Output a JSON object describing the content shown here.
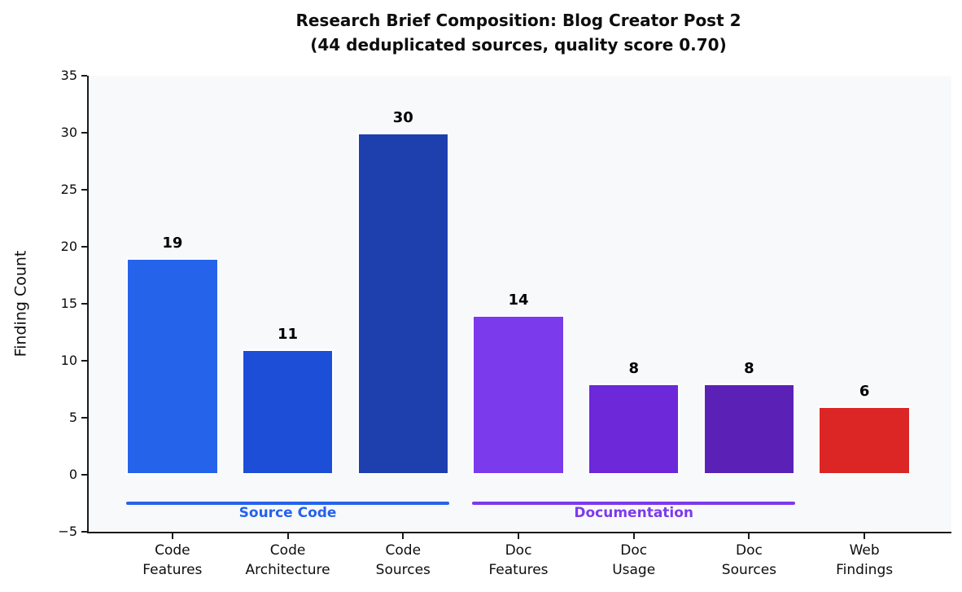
{
  "figure": {
    "title_line1": "Research Brief Composition: Blog Creator Post 2",
    "title_line2": "(44 deduplicated sources, quality score 0.70)"
  },
  "chart_data": {
    "type": "bar",
    "title": "Research Brief Composition: Blog Creator Post 2 (44 deduplicated sources, quality score 0.70)",
    "xlabel": "",
    "ylabel": "Finding Count",
    "ylim": [
      -5,
      35
    ],
    "yticks": [
      35,
      30,
      25,
      20,
      15,
      10,
      5,
      0,
      -5
    ],
    "grid": false,
    "legend_position": "none",
    "plot_background": "#f8f9fb",
    "categories": [
      "Code Features",
      "Code Architecture",
      "Code Sources",
      "Doc Features",
      "Doc Usage",
      "Doc Sources",
      "Web Findings"
    ],
    "category_lines": [
      [
        "Code",
        "Features"
      ],
      [
        "Code",
        "Architecture"
      ],
      [
        "Code",
        "Sources"
      ],
      [
        "Doc",
        "Features"
      ],
      [
        "Doc",
        "Usage"
      ],
      [
        "Doc",
        "Sources"
      ],
      [
        "Web",
        "Findings"
      ]
    ],
    "values": [
      19,
      11,
      30,
      14,
      8,
      8,
      6
    ],
    "value_labels": [
      "19",
      "11",
      "30",
      "14",
      "8",
      "8",
      "6"
    ],
    "bar_colors": [
      "#2563eb",
      "#1d4ed8",
      "#1e40af",
      "#7c3aed",
      "#6d28d9",
      "#5b21b6",
      "#dc2626"
    ],
    "group_annotations": [
      {
        "label": "Source Code",
        "color": "#2563eb",
        "bar_start": 0,
        "bar_end": 2,
        "line_y": -2.5
      },
      {
        "label": "Documentation",
        "color": "#7c3aed",
        "bar_start": 3,
        "bar_end": 5,
        "line_y": -2.5
      }
    ]
  }
}
